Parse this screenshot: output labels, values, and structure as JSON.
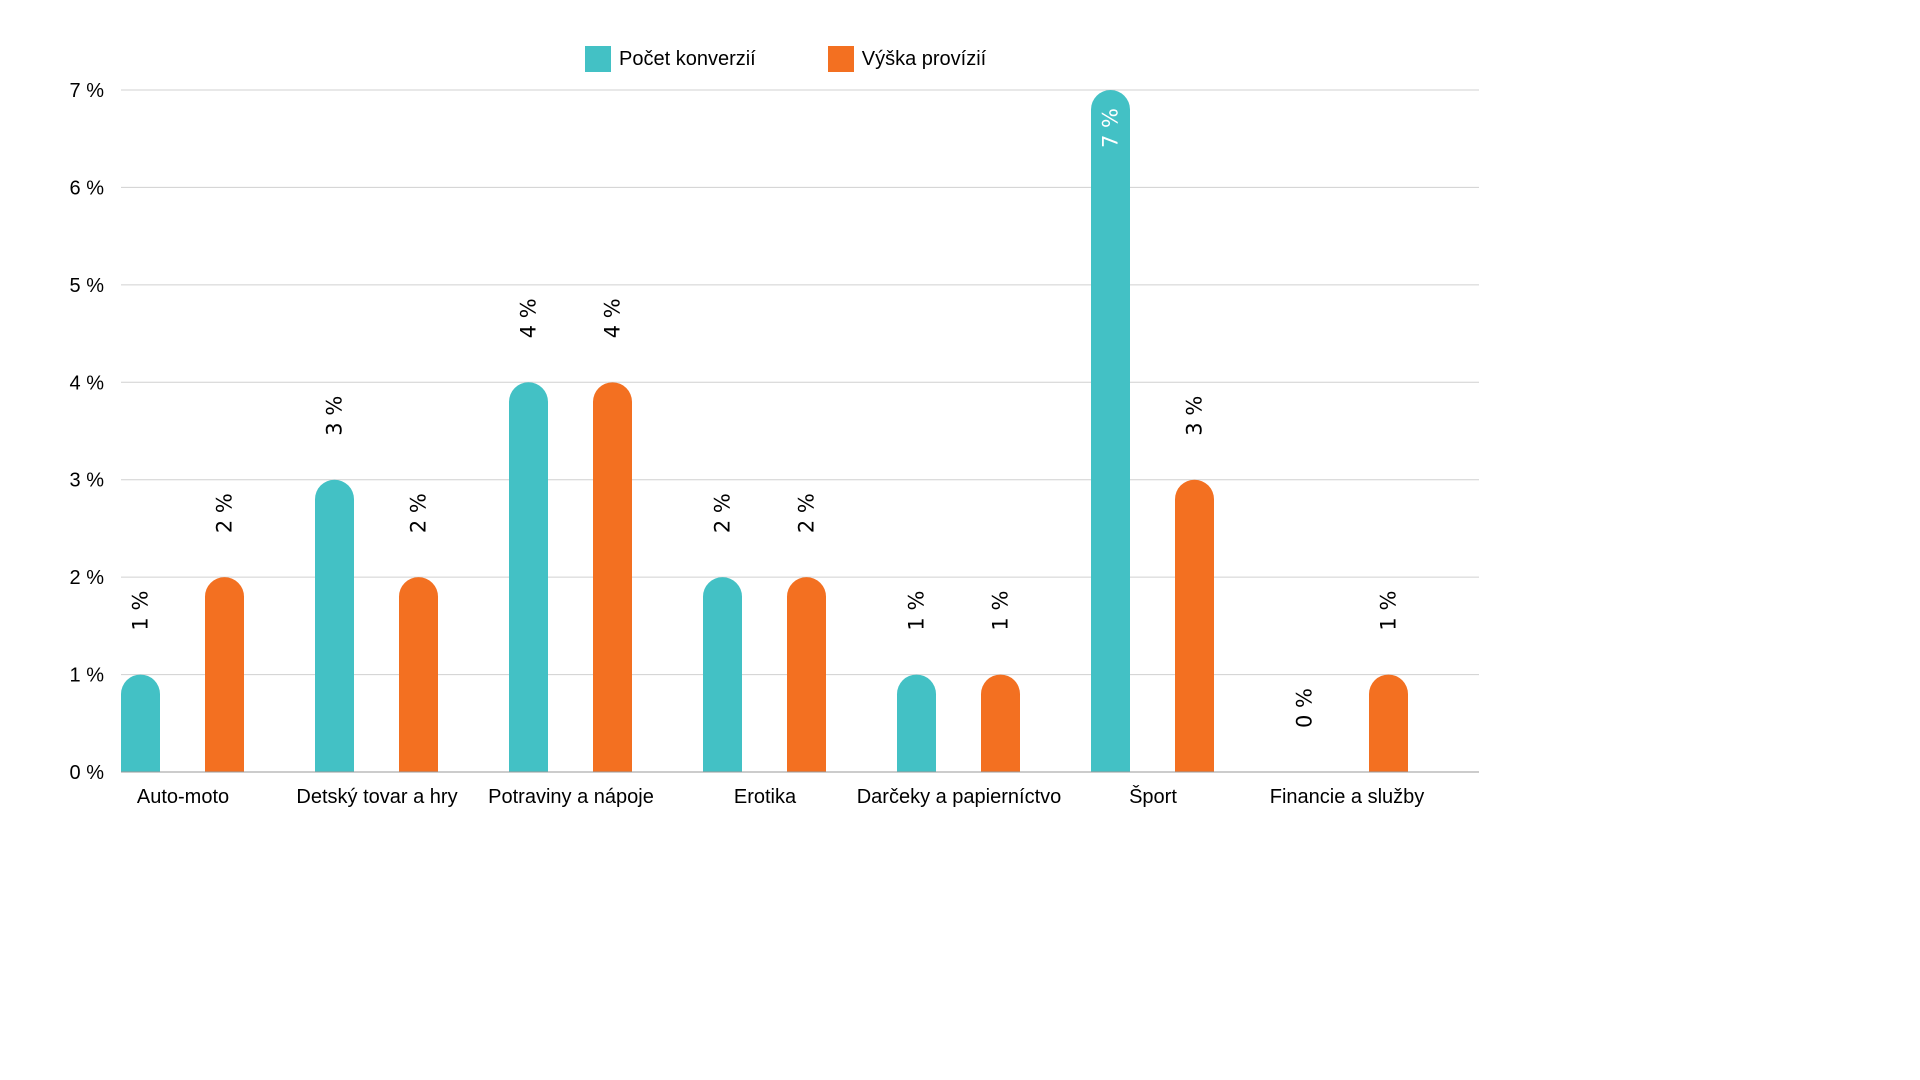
{
  "chart_data": {
    "type": "bar",
    "title": "",
    "xlabel": "",
    "ylabel": "",
    "ylim": [
      0,
      7
    ],
    "yticks": [
      "0 %",
      "1 %",
      "2 %",
      "3 %",
      "4 %",
      "5 %",
      "6 %",
      "7 %"
    ],
    "grid": true,
    "legend_position": "top-center",
    "categories": [
      "Auto-moto",
      "Detský tovar a hry",
      "Potraviny a nápoje",
      "Erotika",
      "Darčeky a papierníctvo",
      "Šport",
      "Financie a služby"
    ],
    "series": [
      {
        "name": "Počet konverzií",
        "color": "#43c1c5",
        "values": [
          1,
          3,
          4,
          2,
          1,
          7,
          0
        ],
        "labels": [
          "1 %",
          "3 %",
          "4 %",
          "2 %",
          "1 %",
          "7 %",
          "0 %"
        ]
      },
      {
        "name": "Výška provízií",
        "color": "#f37021",
        "values": [
          2,
          2,
          4,
          2,
          1,
          3,
          1
        ],
        "labels": [
          "2 %",
          "2 %",
          "4 %",
          "2 %",
          "1 %",
          "3 %",
          "1 %"
        ]
      }
    ]
  }
}
